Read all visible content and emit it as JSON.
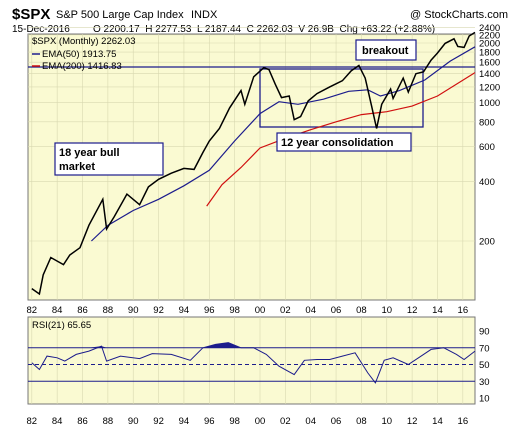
{
  "header": {
    "symbol": "$SPX",
    "name": "S&P 500 Large Cap Index",
    "exchange": "INDX",
    "watermark": "@ StockCharts.com",
    "date": "15-Dec-2016",
    "ohlc": "O 2200.17  H 2277.53  L 2187.44  C 2262.03  V 26.9B  Chg +63.22 (+2.88%)"
  },
  "legend": {
    "price": "$SPX (Monthly) 2262.03",
    "ema50": "EMA(50) 1913.75",
    "ema200": "EMA(200) 1416.83"
  },
  "annotations": {
    "bull_line1": "18 year bull",
    "bull_line2": "market",
    "consolidation": "12 year consolidation",
    "breakout": "breakout"
  },
  "rsi_label": "RSI(21) 65.65",
  "colors": {
    "panel_bg": "#fafad2",
    "price": "#000000",
    "ema50": "#1c1c8c",
    "ema200": "#d01010",
    "box": "#1c1c8c",
    "rsi": "#1c1c8c",
    "rsi_ref": "#1c1c8c"
  },
  "chart_data": {
    "type": "line",
    "scale": "log",
    "price_ticks": [
      2400,
      2200,
      2000,
      1800,
      1600,
      1400,
      1200,
      1000,
      800,
      600,
      400,
      200
    ],
    "rsi_ticks": [
      90,
      70,
      50,
      30,
      10
    ],
    "rsi_reference_lines": [
      70,
      50,
      30
    ],
    "x_ticks": [
      "82",
      "84",
      "86",
      "88",
      "90",
      "92",
      "94",
      "96",
      "98",
      "00",
      "02",
      "04",
      "06",
      "08",
      "10",
      "12",
      "14",
      "16"
    ],
    "x_range": [
      1981.7,
      2016.96
    ],
    "series": [
      {
        "key": "spx",
        "values": [
          [
            1982.0,
            115
          ],
          [
            1982.6,
            108
          ],
          [
            1982.9,
            135
          ],
          [
            1983.5,
            165
          ],
          [
            1984.5,
            152
          ],
          [
            1985.0,
            170
          ],
          [
            1985.8,
            185
          ],
          [
            1986.5,
            240
          ],
          [
            1987.6,
            325
          ],
          [
            1987.9,
            230
          ],
          [
            1988.5,
            265
          ],
          [
            1989.5,
            345
          ],
          [
            1990.5,
            305
          ],
          [
            1991.2,
            375
          ],
          [
            1992.0,
            410
          ],
          [
            1993.0,
            440
          ],
          [
            1994.0,
            465
          ],
          [
            1994.8,
            460
          ],
          [
            1995.5,
            560
          ],
          [
            1996.0,
            640
          ],
          [
            1996.8,
            740
          ],
          [
            1997.6,
            940
          ],
          [
            1998.5,
            1150
          ],
          [
            1998.8,
            980
          ],
          [
            1999.5,
            1350
          ],
          [
            2000.3,
            1500
          ],
          [
            2000.7,
            1470
          ],
          [
            2001.2,
            1240
          ],
          [
            2001.7,
            1060
          ],
          [
            2002.3,
            1080
          ],
          [
            2002.7,
            820
          ],
          [
            2003.2,
            850
          ],
          [
            2003.8,
            1020
          ],
          [
            2004.5,
            1110
          ],
          [
            2005.5,
            1200
          ],
          [
            2006.5,
            1290
          ],
          [
            2007.2,
            1450
          ],
          [
            2007.8,
            1540
          ],
          [
            2008.3,
            1330
          ],
          [
            2008.8,
            960
          ],
          [
            2009.2,
            740
          ],
          [
            2009.6,
            980
          ],
          [
            2010.3,
            1170
          ],
          [
            2010.5,
            1050
          ],
          [
            2011.3,
            1330
          ],
          [
            2011.7,
            1130
          ],
          [
            2012.3,
            1400
          ],
          [
            2012.9,
            1430
          ],
          [
            2013.5,
            1640
          ],
          [
            2014.0,
            1780
          ],
          [
            2014.6,
            1990
          ],
          [
            2015.3,
            2100
          ],
          [
            2015.6,
            1920
          ],
          [
            2016.1,
            1900
          ],
          [
            2016.5,
            2170
          ],
          [
            2016.96,
            2262
          ]
        ]
      },
      {
        "key": "ema50",
        "values": [
          [
            1986.7,
            200
          ],
          [
            1988.0,
            240
          ],
          [
            1990.0,
            285
          ],
          [
            1992.0,
            325
          ],
          [
            1994.0,
            380
          ],
          [
            1996.0,
            455
          ],
          [
            1998.0,
            640
          ],
          [
            2000.0,
            880
          ],
          [
            2001.5,
            1010
          ],
          [
            2003.0,
            980
          ],
          [
            2005.0,
            1040
          ],
          [
            2007.0,
            1140
          ],
          [
            2008.5,
            1160
          ],
          [
            2009.5,
            1080
          ],
          [
            2011.0,
            1150
          ],
          [
            2013.0,
            1300
          ],
          [
            2015.0,
            1620
          ],
          [
            2016.96,
            1914
          ]
        ]
      },
      {
        "key": "ema200",
        "values": [
          [
            1995.8,
            300
          ],
          [
            1997.0,
            385
          ],
          [
            1998.5,
            470
          ],
          [
            2000.0,
            590
          ],
          [
            2002.0,
            660
          ],
          [
            2004.0,
            730
          ],
          [
            2006.0,
            800
          ],
          [
            2008.0,
            870
          ],
          [
            2010.0,
            900
          ],
          [
            2012.0,
            960
          ],
          [
            2014.0,
            1080
          ],
          [
            2016.96,
            1417
          ]
        ]
      },
      {
        "key": "rsi",
        "values": [
          [
            1982.0,
            52
          ],
          [
            1982.6,
            44
          ],
          [
            1983.2,
            60
          ],
          [
            1984.0,
            58
          ],
          [
            1984.6,
            54
          ],
          [
            1985.5,
            62
          ],
          [
            1986.5,
            66
          ],
          [
            1987.5,
            72
          ],
          [
            1987.9,
            54
          ],
          [
            1989.0,
            60
          ],
          [
            1990.5,
            57
          ],
          [
            1991.5,
            63
          ],
          [
            1993.0,
            62
          ],
          [
            1994.5,
            55
          ],
          [
            1995.5,
            70
          ],
          [
            1996.5,
            74
          ],
          [
            1997.5,
            76
          ],
          [
            1998.5,
            70
          ],
          [
            1999.5,
            70
          ],
          [
            2000.5,
            62
          ],
          [
            2001.5,
            48
          ],
          [
            2002.7,
            38
          ],
          [
            2003.5,
            55
          ],
          [
            2004.5,
            56
          ],
          [
            2005.5,
            56
          ],
          [
            2006.5,
            60
          ],
          [
            2007.5,
            64
          ],
          [
            2008.5,
            40
          ],
          [
            2009.1,
            28
          ],
          [
            2009.8,
            55
          ],
          [
            2010.5,
            58
          ],
          [
            2011.7,
            50
          ],
          [
            2012.5,
            58
          ],
          [
            2013.5,
            68
          ],
          [
            2014.5,
            70
          ],
          [
            2015.5,
            62
          ],
          [
            2016.1,
            56
          ],
          [
            2016.96,
            66
          ]
        ]
      }
    ]
  }
}
